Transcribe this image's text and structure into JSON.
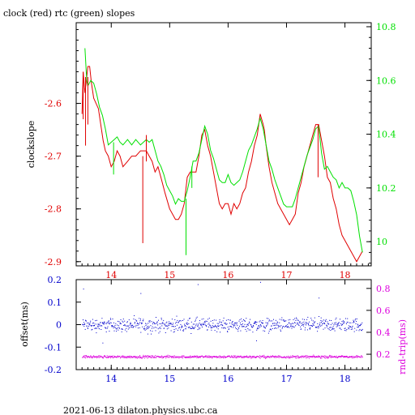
{
  "title": "clock (red) rtc (green) slopes",
  "footer": "2021-06-13  dilaton.physics.ubc.ca",
  "colors": {
    "red": "#e00000",
    "green": "#00e000",
    "blue": "#0000cc",
    "magenta": "#dd00dd",
    "axis": "#000000"
  },
  "chart_data": [
    {
      "type": "line",
      "title": "clock (red) rtc (green) slopes",
      "xlabel": "",
      "ylabel": "clockslope",
      "xlim": [
        13.4,
        18.45
      ],
      "ylim": [
        -2.908,
        -2.447
      ],
      "xticks": [
        "14",
        "15",
        "16",
        "17",
        "18"
      ],
      "yticks_left": [
        "-2.6",
        "-2.7",
        "-2.8",
        "-2.9"
      ],
      "yticks_right": [
        "10.8",
        "10.6",
        "10.4",
        "10.2",
        "10"
      ],
      "right_axis": {
        "ylim": [
          9.91,
          10.815
        ]
      },
      "grid": false,
      "series": [
        {
          "name": "clock",
          "axis": "left",
          "color": "#e00000",
          "points": [
            [
              13.5,
              -2.62
            ],
            [
              13.52,
              -2.54
            ],
            [
              13.55,
              -2.58
            ],
            [
              13.58,
              -2.55
            ],
            [
              13.6,
              -2.53
            ],
            [
              13.63,
              -2.53
            ],
            [
              13.66,
              -2.56
            ],
            [
              13.7,
              -2.59
            ],
            [
              13.74,
              -2.6
            ],
            [
              13.78,
              -2.61
            ],
            [
              13.82,
              -2.64
            ],
            [
              13.86,
              -2.67
            ],
            [
              13.9,
              -2.69
            ],
            [
              13.95,
              -2.7
            ],
            [
              14.0,
              -2.72
            ],
            [
              14.05,
              -2.71
            ],
            [
              14.1,
              -2.69
            ],
            [
              14.15,
              -2.7
            ],
            [
              14.2,
              -2.72
            ],
            [
              14.28,
              -2.71
            ],
            [
              14.35,
              -2.7
            ],
            [
              14.42,
              -2.7
            ],
            [
              14.5,
              -2.69
            ],
            [
              14.55,
              -2.69
            ],
            [
              14.6,
              -2.69
            ],
            [
              14.65,
              -2.7
            ],
            [
              14.7,
              -2.71
            ],
            [
              14.75,
              -2.73
            ],
            [
              14.8,
              -2.72
            ],
            [
              14.85,
              -2.74
            ],
            [
              14.92,
              -2.77
            ],
            [
              15.0,
              -2.8
            ],
            [
              15.05,
              -2.81
            ],
            [
              15.1,
              -2.82
            ],
            [
              15.15,
              -2.82
            ],
            [
              15.2,
              -2.81
            ],
            [
              15.25,
              -2.79
            ],
            [
              15.3,
              -2.74
            ],
            [
              15.35,
              -2.73
            ],
            [
              15.4,
              -2.73
            ],
            [
              15.45,
              -2.73
            ],
            [
              15.5,
              -2.7
            ],
            [
              15.55,
              -2.66
            ],
            [
              15.6,
              -2.65
            ],
            [
              15.65,
              -2.68
            ],
            [
              15.7,
              -2.7
            ],
            [
              15.75,
              -2.73
            ],
            [
              15.8,
              -2.76
            ],
            [
              15.85,
              -2.79
            ],
            [
              15.9,
              -2.8
            ],
            [
              15.95,
              -2.79
            ],
            [
              16.0,
              -2.79
            ],
            [
              16.05,
              -2.81
            ],
            [
              16.1,
              -2.79
            ],
            [
              16.15,
              -2.8
            ],
            [
              16.2,
              -2.79
            ],
            [
              16.25,
              -2.77
            ],
            [
              16.3,
              -2.76
            ],
            [
              16.35,
              -2.73
            ],
            [
              16.4,
              -2.71
            ],
            [
              16.45,
              -2.68
            ],
            [
              16.5,
              -2.66
            ],
            [
              16.55,
              -2.62
            ],
            [
              16.6,
              -2.64
            ],
            [
              16.62,
              -2.65
            ],
            [
              16.65,
              -2.68
            ],
            [
              16.7,
              -2.72
            ],
            [
              16.75,
              -2.75
            ],
            [
              16.8,
              -2.77
            ],
            [
              16.85,
              -2.79
            ],
            [
              16.9,
              -2.8
            ],
            [
              16.95,
              -2.81
            ],
            [
              17.0,
              -2.82
            ],
            [
              17.05,
              -2.83
            ],
            [
              17.1,
              -2.82
            ],
            [
              17.15,
              -2.81
            ],
            [
              17.2,
              -2.77
            ],
            [
              17.25,
              -2.75
            ],
            [
              17.3,
              -2.72
            ],
            [
              17.35,
              -2.7
            ],
            [
              17.4,
              -2.68
            ],
            [
              17.45,
              -2.66
            ],
            [
              17.5,
              -2.64
            ],
            [
              17.55,
              -2.64
            ],
            [
              17.6,
              -2.67
            ],
            [
              17.65,
              -2.7
            ],
            [
              17.7,
              -2.74
            ],
            [
              17.75,
              -2.75
            ],
            [
              17.8,
              -2.78
            ],
            [
              17.85,
              -2.8
            ],
            [
              17.9,
              -2.83
            ],
            [
              17.95,
              -2.85
            ],
            [
              18.0,
              -2.86
            ],
            [
              18.05,
              -2.87
            ],
            [
              18.1,
              -2.88
            ],
            [
              18.15,
              -2.89
            ],
            [
              18.2,
              -2.9
            ],
            [
              18.25,
              -2.89
            ],
            [
              18.3,
              -2.88
            ]
          ]
        },
        {
          "name": "rtc",
          "axis": "right",
          "color": "#00e000",
          "points": [
            [
              13.55,
              10.72
            ],
            [
              13.58,
              10.6
            ],
            [
              13.6,
              10.58
            ],
            [
              13.65,
              10.6
            ],
            [
              13.7,
              10.59
            ],
            [
              13.75,
              10.55
            ],
            [
              13.8,
              10.5
            ],
            [
              13.85,
              10.47
            ],
            [
              13.9,
              10.42
            ],
            [
              13.95,
              10.36
            ],
            [
              14.0,
              10.37
            ],
            [
              14.05,
              10.38
            ],
            [
              14.1,
              10.39
            ],
            [
              14.15,
              10.37
            ],
            [
              14.2,
              10.36
            ],
            [
              14.28,
              10.38
            ],
            [
              14.35,
              10.36
            ],
            [
              14.42,
              10.38
            ],
            [
              14.5,
              10.36
            ],
            [
              14.55,
              10.37
            ],
            [
              14.6,
              10.38
            ],
            [
              14.65,
              10.37
            ],
            [
              14.7,
              10.38
            ],
            [
              14.75,
              10.34
            ],
            [
              14.8,
              10.3
            ],
            [
              14.85,
              10.28
            ],
            [
              14.9,
              10.25
            ],
            [
              14.95,
              10.21
            ],
            [
              15.0,
              10.19
            ],
            [
              15.05,
              10.17
            ],
            [
              15.1,
              10.14
            ],
            [
              15.15,
              10.16
            ],
            [
              15.2,
              10.15
            ],
            [
              15.25,
              10.15
            ],
            [
              15.3,
              10.19
            ],
            [
              15.35,
              10.24
            ],
            [
              15.4,
              10.3
            ],
            [
              15.45,
              10.3
            ],
            [
              15.5,
              10.33
            ],
            [
              15.55,
              10.38
            ],
            [
              15.6,
              10.43
            ],
            [
              15.65,
              10.4
            ],
            [
              15.7,
              10.34
            ],
            [
              15.75,
              10.31
            ],
            [
              15.8,
              10.27
            ],
            [
              15.85,
              10.23
            ],
            [
              15.9,
              10.22
            ],
            [
              15.95,
              10.22
            ],
            [
              16.0,
              10.25
            ],
            [
              16.05,
              10.22
            ],
            [
              16.1,
              10.21
            ],
            [
              16.15,
              10.22
            ],
            [
              16.2,
              10.23
            ],
            [
              16.25,
              10.26
            ],
            [
              16.3,
              10.3
            ],
            [
              16.35,
              10.34
            ],
            [
              16.4,
              10.36
            ],
            [
              16.45,
              10.39
            ],
            [
              16.5,
              10.42
            ],
            [
              16.55,
              10.46
            ],
            [
              16.6,
              10.42
            ],
            [
              16.65,
              10.36
            ],
            [
              16.7,
              10.3
            ],
            [
              16.75,
              10.27
            ],
            [
              16.8,
              10.23
            ],
            [
              16.85,
              10.2
            ],
            [
              16.9,
              10.17
            ],
            [
              16.95,
              10.14
            ],
            [
              17.0,
              10.13
            ],
            [
              17.05,
              10.13
            ],
            [
              17.1,
              10.13
            ],
            [
              17.15,
              10.16
            ],
            [
              17.2,
              10.2
            ],
            [
              17.25,
              10.24
            ],
            [
              17.3,
              10.28
            ],
            [
              17.35,
              10.32
            ],
            [
              17.4,
              10.35
            ],
            [
              17.45,
              10.38
            ],
            [
              17.5,
              10.42
            ],
            [
              17.55,
              10.43
            ],
            [
              17.6,
              10.33
            ],
            [
              17.65,
              10.27
            ],
            [
              17.7,
              10.28
            ],
            [
              17.75,
              10.26
            ],
            [
              17.8,
              10.24
            ],
            [
              17.85,
              10.23
            ],
            [
              17.9,
              10.2
            ],
            [
              17.95,
              10.22
            ],
            [
              18.0,
              10.2
            ],
            [
              18.05,
              10.2
            ],
            [
              18.1,
              10.19
            ],
            [
              18.15,
              10.15
            ],
            [
              18.2,
              10.1
            ],
            [
              18.25,
              10.02
            ],
            [
              18.3,
              9.96
            ]
          ]
        }
      ],
      "spikes": [
        {
          "series": "clock",
          "x": 13.52,
          "y_from": -2.54,
          "y_to": -2.63
        },
        {
          "series": "clock",
          "x": 13.56,
          "y_from": -2.55,
          "y_to": -2.68
        },
        {
          "series": "clock",
          "x": 13.6,
          "y_from": -2.55,
          "y_to": -2.64
        },
        {
          "series": "clock",
          "x": 14.54,
          "y_from": -2.7,
          "y_to": -2.865
        },
        {
          "series": "clock",
          "x": 14.6,
          "y_from": -2.66,
          "y_to": -2.71
        },
        {
          "series": "clock",
          "x": 17.54,
          "y_from": -2.64,
          "y_to": -2.74
        },
        {
          "series": "rtc",
          "x": 14.04,
          "y_from": 10.37,
          "y_to": 10.25
        },
        {
          "series": "rtc",
          "x": 15.28,
          "y_from": 10.16,
          "y_to": 9.95
        },
        {
          "series": "rtc",
          "x": 15.38,
          "y_from": 10.28,
          "y_to": 10.2
        }
      ]
    },
    {
      "type": "scatter",
      "xlabel": "",
      "ylabel": "offset(ms)",
      "ylabel_right": "rnd-trip(ms)",
      "xlim": [
        13.4,
        18.45
      ],
      "ylim": [
        -0.2,
        0.2
      ],
      "xticks": [
        "14",
        "15",
        "16",
        "17",
        "18"
      ],
      "yticks_left": [
        "0.2",
        "0.1",
        "0",
        "-0.1",
        "-0.2"
      ],
      "yticks_right": [
        "0.8",
        "0.6",
        "0.4",
        "0.2"
      ],
      "right_axis": {
        "ylim": [
          0.06,
          0.88
        ]
      },
      "grid": false,
      "series": [
        {
          "name": "offset",
          "axis": "left",
          "color": "#0000cc",
          "typical_value": 0.0,
          "spread": 0.015,
          "x_range": [
            13.5,
            18.3
          ]
        },
        {
          "name": "rnd-trip",
          "axis": "right",
          "color": "#dd00dd",
          "typical_value": 0.18,
          "spread": 0.006,
          "x_range": [
            13.5,
            18.3
          ]
        }
      ],
      "outliers": [
        {
          "series": "offset",
          "x": 13.52,
          "y": 0.16
        },
        {
          "series": "offset",
          "x": 14.5,
          "y": 0.14
        },
        {
          "series": "offset",
          "x": 14.62,
          "y": -0.04
        },
        {
          "series": "offset",
          "x": 16.55,
          "y": 0.19
        },
        {
          "series": "offset",
          "x": 17.55,
          "y": 0.12
        },
        {
          "series": "offset",
          "x": 15.48,
          "y": 0.18
        },
        {
          "series": "offset",
          "x": 16.48,
          "y": -0.07
        },
        {
          "series": "offset",
          "x": 13.85,
          "y": -0.08
        }
      ]
    }
  ]
}
